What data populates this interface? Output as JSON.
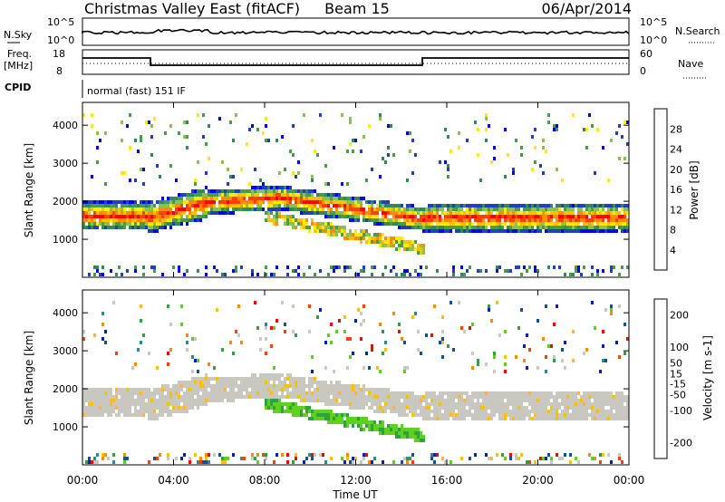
{
  "header": {
    "station": "Christmas Valley East (fitACF)",
    "beam": "Beam 15",
    "date": "06/Apr/2014"
  },
  "summary": {
    "nsky_label": "N.Sky",
    "nsky_ticks": [
      "10^5",
      "10^0"
    ],
    "nsearch_label": "N.Search",
    "nsearch_ticks": [
      "10^5",
      "10^0"
    ],
    "freq_label": "Freq.",
    "freq_unit": "[MHz]",
    "freq_ticks": [
      "18",
      "8"
    ],
    "nave_label": "Nave",
    "nave_ticks": [
      "60",
      "0"
    ],
    "cpid_label": "CPID",
    "cpid_value": "normal (fast) 151 IF"
  },
  "colors": {
    "power": [
      "#0000ff",
      "#2040c0",
      "#2e8b57",
      "#4a9c4a",
      "#8bc34a",
      "#ffeb00",
      "#ffc000",
      "#ff8c00",
      "#ff4000",
      "#ff0000"
    ],
    "velocity": [
      "#ff0000",
      "#ff4000",
      "#ff8c00",
      "#ffc000",
      "#c8c8c0",
      "#c8c8c0",
      "#60d020",
      "#30a040",
      "#2e8b8b",
      "#1050a0",
      "#0020c0"
    ]
  },
  "chart_data": [
    {
      "type": "heatmap",
      "name": "power",
      "ylabel": "Slant Range [km]",
      "yticks": [
        1000,
        2000,
        3000,
        4000
      ],
      "ylim": [
        0,
        4600
      ],
      "colorbar_label": "Power [dB]",
      "colorbar_ticks": [
        4,
        8,
        12,
        16,
        20,
        24,
        28
      ],
      "colorbar_range": [
        0,
        32
      ],
      "bands": [
        {
          "t0": 0.0,
          "t1": 2.9,
          "r0": 1280,
          "r1": 2000,
          "level": 0.9
        },
        {
          "t0": 2.9,
          "t1": 5.5,
          "r0": 1000,
          "r1": 2100,
          "level": 0.8
        },
        {
          "t0": 5.5,
          "t1": 9.0,
          "r0": 1700,
          "r1": 2350,
          "level": 0.6
        },
        {
          "t0": 9.0,
          "t1": 15.0,
          "r0": 1100,
          "r1": 2100,
          "level": 0.55
        },
        {
          "t0": 15.0,
          "t1": 24.0,
          "r0": 1150,
          "r1": 1950,
          "level": 0.9
        }
      ],
      "xlabel": "Time UT"
    },
    {
      "type": "heatmap",
      "name": "velocity",
      "ylabel": "Slant Range [km]",
      "yticks": [
        1000,
        2000,
        3000,
        4000
      ],
      "ylim": [
        0,
        4600
      ],
      "colorbar_label": "Velocity [m s-1]",
      "colorbar_ticks": [
        -200,
        -100,
        -50,
        -15,
        15,
        50,
        100,
        200
      ],
      "colorbar_range": [
        -250,
        250
      ],
      "xlabel": "Time UT"
    }
  ],
  "xaxis": {
    "label": "Time UT",
    "ticks": [
      "00:00",
      "04:00",
      "08:00",
      "12:00",
      "16:00",
      "20:00",
      "00:00"
    ],
    "range_hours": [
      0,
      24
    ]
  }
}
